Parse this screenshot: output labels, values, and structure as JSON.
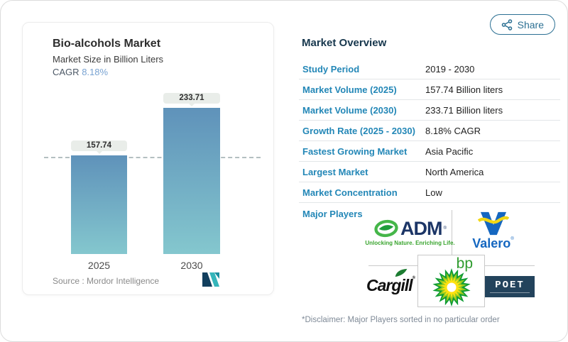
{
  "share": {
    "label": "Share",
    "icon": "share-nodes-icon"
  },
  "chart_card": {
    "title": "Bio-alcohols Market",
    "subtitle": "Market Size in Billion Liters",
    "cagr_label": "CAGR",
    "cagr_value": "8.18%",
    "source_label": "Source :",
    "source_value": "Mordor Intelligence",
    "source_logo": "mordor-intelligence-logo"
  },
  "chart_data": {
    "type": "bar",
    "categories": [
      "2025",
      "2030"
    ],
    "values": [
      157.74,
      233.71
    ],
    "bar_labels": [
      "157.74",
      "233.71"
    ],
    "title": "Bio-alcohols Market",
    "ylabel": "Market Size in Billion Liters",
    "ylim": [
      0,
      260
    ],
    "grid": false,
    "reference_line": 157.74,
    "bar_gradient_top": "#5f92ba",
    "bar_gradient_bottom": "#84c7ce"
  },
  "overview": {
    "heading": "Market Overview",
    "rows": [
      {
        "label": "Study Period",
        "value": "2019 - 2030"
      },
      {
        "label": "Market Volume (2025)",
        "value": "157.74 Billion liters"
      },
      {
        "label": "Market Volume (2030)",
        "value": "233.71 Billion liters"
      },
      {
        "label": "Growth Rate (2025 - 2030)",
        "value": "8.18% CAGR"
      },
      {
        "label": "Fastest Growing Market",
        "value": "Asia Pacific"
      },
      {
        "label": "Largest Market",
        "value": "North America"
      },
      {
        "label": "Market Concentration",
        "value": "Low"
      }
    ],
    "disclaimer": "*Disclaimer: Major Players sorted in no particular order"
  },
  "players": {
    "label": "Major Players",
    "adm": {
      "name": "ADM",
      "tagline": "Unlocking Nature. Enriching Life.",
      "navy": "#1c3566",
      "green": "#3aa52f"
    },
    "valero": {
      "name": "Valero",
      "blue": "#1567c0",
      "yellow": "#f2d714"
    },
    "cargill": {
      "name": "Cargill",
      "black": "#101010",
      "leaf_green": "#1c7c31"
    },
    "bp": {
      "name": "bp",
      "green": "#0f9c35",
      "yellow": "#ffe210"
    },
    "poet": {
      "name": "POET",
      "navy": "#23435c"
    }
  },
  "colors": {
    "accent_blue": "#2387b7",
    "heading_navy": "#17374d",
    "cagr_blue": "#79a3d2",
    "share_teal": "#2c7093",
    "pill_bg": "#e9ede9"
  }
}
